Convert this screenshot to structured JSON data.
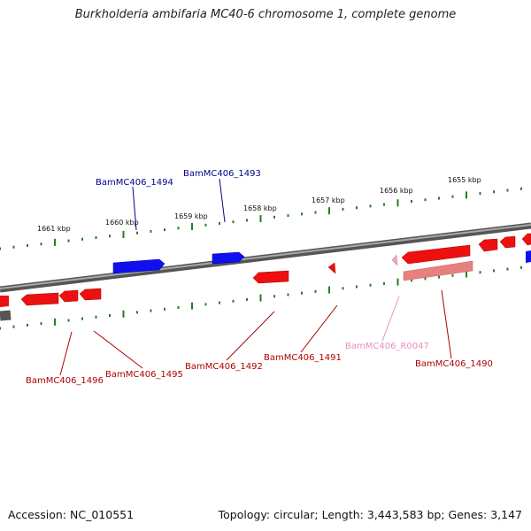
{
  "title": "Burkholderia ambifaria MC40-6 chromosome 1, complete genome",
  "footer": {
    "accession": "Accession: NC_010551",
    "summary": "Topology: circular; Length: 3,443,583 bp; Genes: 3,147"
  },
  "colors": {
    "forward_gene": "#1010ee",
    "reverse_gene": "#ee1010",
    "rna_gene": "#f0a0c8",
    "forward_label": "#00008b",
    "reverse_label": "#b00000",
    "rna_label": "#e890c0",
    "backbone": "#7a7a7a",
    "ticks": "#2a7a2a"
  },
  "kbp_ticks": [
    "1661 kbp",
    "1660 kbp",
    "1659 kbp",
    "1658 kbp",
    "1657 kbp",
    "1656 kbp",
    "1655 kbp"
  ],
  "gene_labels": [
    {
      "name": "BamMC406_1494",
      "strand": "forward"
    },
    {
      "name": "BamMC406_1493",
      "strand": "forward"
    },
    {
      "name": "BamMC406_1496",
      "strand": "reverse"
    },
    {
      "name": "BamMC406_1495",
      "strand": "reverse"
    },
    {
      "name": "BamMC406_1492",
      "strand": "reverse"
    },
    {
      "name": "BamMC406_1491",
      "strand": "reverse"
    },
    {
      "name": "BamMC406_R0047",
      "strand": "rna"
    },
    {
      "name": "BamMC406_1490",
      "strand": "reverse"
    }
  ]
}
